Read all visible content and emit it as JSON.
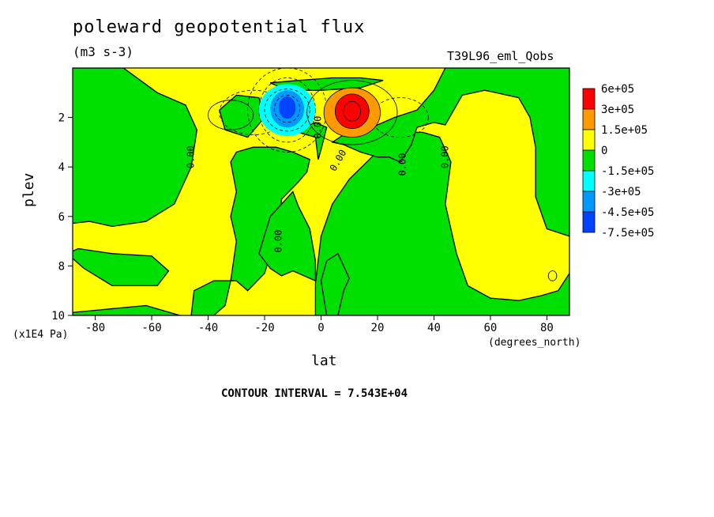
{
  "header": {
    "title": "poleward geopotential flux",
    "units": "(m3 s-3)",
    "run": "T39L96_eml_Qobs",
    "contour_interval": "CONTOUR INTERVAL = 7.543E+04"
  },
  "chart_data": {
    "type": "heatmap",
    "title": "poleward geopotential flux",
    "subtitle": "(m3 s-3)",
    "xlabel": "lat",
    "xunit": "(degrees_north)",
    "ylabel": "plev",
    "yunit": "(x1E4 Pa)",
    "xlim": [
      -88,
      88
    ],
    "ylim": [
      10,
      0
    ],
    "x_ticks": [
      -80,
      -60,
      -40,
      -20,
      0,
      20,
      40,
      60,
      80
    ],
    "y_ticks": [
      2,
      4,
      6,
      8,
      10
    ],
    "contour_interval": 75430,
    "zero_contour_label": "0.00",
    "legend": {
      "position": "right",
      "levels": [
        {
          "label": "6e+05",
          "color": "#ff0000"
        },
        {
          "label": "3e+05",
          "color": "#ff9900"
        },
        {
          "label": "1.5e+05",
          "color": "#ffff00"
        },
        {
          "label": "0",
          "color": "#00e000"
        },
        {
          "label": "-1.5e+05",
          "color": "#00ffff"
        },
        {
          "label": "-3e+05",
          "color": "#0099ff"
        },
        {
          "label": "-4.5e+05",
          "color": "#0044ff"
        },
        {
          "label": "-7.5e+05",
          "color": ""
        }
      ]
    },
    "features": [
      {
        "name": "positive maximum",
        "lat": 11,
        "plev": 1.8,
        "value": 600000
      },
      {
        "name": "negative minimum",
        "lat": -12,
        "plev": 1.7,
        "value": -750000
      }
    ]
  }
}
